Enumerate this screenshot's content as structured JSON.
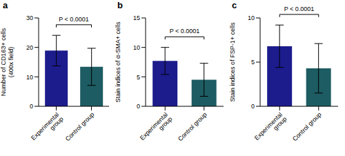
{
  "chart_data": [
    {
      "type": "bar",
      "title": "a",
      "y_label": [
        "Number of CD163+ cells",
        "(400x field)"
      ],
      "categories": [
        "Experimental group",
        "Control group"
      ],
      "values": [
        18.9,
        13.4
      ],
      "errors": [
        5.2,
        6.3
      ],
      "colors": [
        "#1c1c8c",
        "#1d5c62"
      ],
      "ylim": [
        0,
        30
      ],
      "yticks": [
        0,
        10,
        20,
        30
      ],
      "annotations": [
        {
          "text": "P < 0.0001"
        }
      ]
    },
    {
      "type": "bar",
      "title": "b",
      "y_label": [
        "Stain indices of α-SMA+ cells"
      ],
      "categories": [
        "Experimental group",
        "Control group"
      ],
      "values": [
        7.7,
        4.5
      ],
      "errors": [
        2.3,
        2.8
      ],
      "colors": [
        "#1c1c8c",
        "#1d5c62"
      ],
      "ylim": [
        0,
        15
      ],
      "yticks": [
        0,
        5,
        10,
        15
      ],
      "annotations": [
        {
          "text": "P < 0.0001"
        }
      ]
    },
    {
      "type": "bar",
      "title": "c",
      "y_label": [
        "Stain indices of FSP-1+ cells"
      ],
      "categories": [
        "Experimental group",
        "Control group"
      ],
      "values": [
        6.8,
        4.3
      ],
      "errors": [
        2.4,
        2.8
      ],
      "colors": [
        "#1c1c8c",
        "#1d5c62"
      ],
      "ylim": [
        0,
        10
      ],
      "yticks": [
        0,
        5,
        10
      ],
      "annotations": [
        {
          "text": "P < 0.0001"
        }
      ]
    }
  ]
}
